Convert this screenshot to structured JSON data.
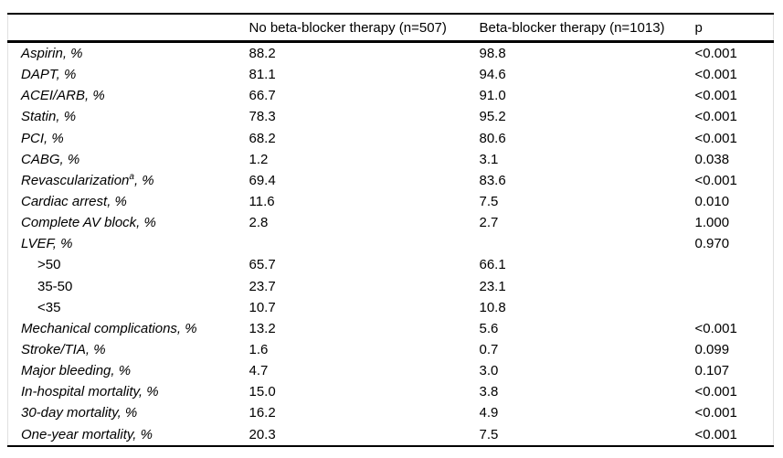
{
  "table": {
    "columns": [
      "",
      "No beta-blocker therapy (n=507)",
      "Beta-blocker therapy (n=1013)",
      "p"
    ],
    "rows": [
      {
        "label": "Aspirin, %",
        "no_bb": "88.2",
        "bb": "98.8",
        "p": "<0.001"
      },
      {
        "label": "DAPT, %",
        "no_bb": "81.1",
        "bb": "94.6",
        "p": "<0.001"
      },
      {
        "label": "ACEI/ARB, %",
        "no_bb": "66.7",
        "bb": "91.0",
        "p": "<0.001"
      },
      {
        "label": "Statin, %",
        "no_bb": "78.3",
        "bb": "95.2",
        "p": "<0.001"
      },
      {
        "label": "PCI, %",
        "no_bb": "68.2",
        "bb": "80.6",
        "p": "<0.001"
      },
      {
        "label": "CABG, %",
        "no_bb": "1.2",
        "bb": "3.1",
        "p": "0.038"
      },
      {
        "label": "Revascularization",
        "superscript": "a",
        "label_suffix": ", %",
        "no_bb": "69.4",
        "bb": "83.6",
        "p": "<0.001"
      },
      {
        "label": "Cardiac arrest, %",
        "no_bb": "11.6",
        "bb": "7.5",
        "p": "0.010"
      },
      {
        "label": "Complete AV block, %",
        "no_bb": "2.8",
        "bb": "2.7",
        "p": "1.000"
      },
      {
        "label": "LVEF, %",
        "no_bb": "",
        "bb": "",
        "p": "0.970"
      },
      {
        "label": ">50",
        "indent": true,
        "no_bb": "65.7",
        "bb": "66.1",
        "p": ""
      },
      {
        "label": "35-50",
        "indent": true,
        "no_bb": "23.7",
        "bb": "23.1",
        "p": ""
      },
      {
        "label": "<35",
        "indent": true,
        "no_bb": "10.7",
        "bb": "10.8",
        "p": ""
      },
      {
        "label": "Mechanical complications, %",
        "no_bb": "13.2",
        "bb": "5.6",
        "p": "<0.001"
      },
      {
        "label": "Stroke/TIA, %",
        "no_bb": "1.6",
        "bb": "0.7",
        "p": "0.099"
      },
      {
        "label": "Major bleeding, %",
        "no_bb": "4.7",
        "bb": "3.0",
        "p": "0.107"
      },
      {
        "label": "In-hospital mortality, %",
        "no_bb": "15.0",
        "bb": "3.8",
        "p": "<0.001"
      },
      {
        "label": "30-day mortality, %",
        "no_bb": "16.2",
        "bb": "4.9",
        "p": "<0.001"
      },
      {
        "label": "One-year mortality, %",
        "no_bb": "20.3",
        "bb": "7.5",
        "p": "<0.001"
      }
    ]
  },
  "colors": {
    "text": "#000000",
    "rule": "#000000",
    "side_border": "#e0e0e0",
    "background": "#ffffff"
  }
}
